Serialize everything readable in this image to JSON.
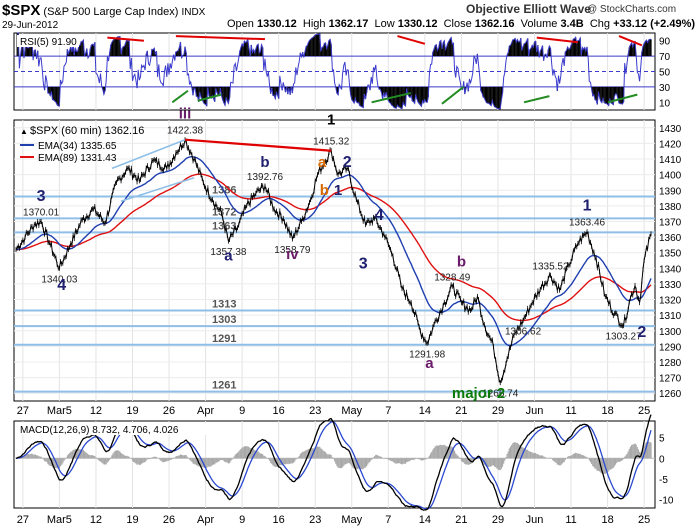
{
  "header": {
    "symbol": "$SPX",
    "name": "(S&P 500 Large Cap Index)",
    "exchange": "INDX",
    "date": "29-Jun-2012",
    "open_label": "Open",
    "open": "1330.12",
    "high_label": "High",
    "high": "1362.17",
    "low_label": "Low",
    "low": "1330.12",
    "close_label": "Close",
    "close": "1362.16",
    "volume_label": "Volume",
    "volume": "3.4B",
    "chg_label": "Chg",
    "chg": "+33.12 (+2.49%)",
    "chg_arrow": "▲",
    "watermark": "Objective Elliott Wave",
    "credit": "@ StockCharts.com"
  },
  "colors": {
    "price": "#000000",
    "ema34": "#1f3fb0",
    "ema89": "#e01010",
    "hline": "#8fbfe6",
    "rsi": "#3b3bcc",
    "macd": "#000000",
    "signal": "#2a48d0",
    "histogram": "#a9a9a9",
    "trend_red": "#e00000",
    "trend_green": "#228b22",
    "label_navy": "#202070",
    "label_purple": "#6a1b6a",
    "label_orange": "#d86a00",
    "label_green": "#0a7a0a"
  },
  "chart_data": [
    {
      "type": "line",
      "panel": "RSI",
      "legend": "RSI(5) 91.90",
      "y_ticks": [
        10,
        30,
        50,
        70,
        90
      ],
      "ylim": [
        0,
        100
      ],
      "reference_lines": [
        30,
        50,
        70
      ],
      "last_value": 91.9
    },
    {
      "type": "line",
      "panel": "price",
      "legend_price": "$SPX (60 min) 1362.16",
      "legend_ema34": "EMA(34) 1335.65",
      "legend_ema89": "EMA(89) 1331.43",
      "ylim": [
        1255,
        1435
      ],
      "y_ticks": [
        1260,
        1270,
        1280,
        1290,
        1300,
        1310,
        1320,
        1330,
        1340,
        1350,
        1360,
        1370,
        1380,
        1390,
        1400,
        1410,
        1420,
        1430
      ],
      "x_ticks": [
        "27",
        "Mar5",
        "12",
        "19",
        "26",
        "Apr",
        "9",
        "16",
        "23",
        "May",
        "7",
        "14",
        "21",
        "29",
        "Jun",
        "11",
        "18",
        "25"
      ],
      "pivots": [
        {
          "t": 0,
          "v": 1352
        },
        {
          "t": 8,
          "v": 1360
        },
        {
          "t": 16,
          "v": 1368
        },
        {
          "t": 22,
          "v": 1370.01
        },
        {
          "t": 30,
          "v": 1355
        },
        {
          "t": 38,
          "v": 1340.03
        },
        {
          "t": 48,
          "v": 1356
        },
        {
          "t": 58,
          "v": 1371
        },
        {
          "t": 68,
          "v": 1378
        },
        {
          "t": 78,
          "v": 1369
        },
        {
          "t": 88,
          "v": 1395
        },
        {
          "t": 98,
          "v": 1404
        },
        {
          "t": 108,
          "v": 1396
        },
        {
          "t": 120,
          "v": 1409
        },
        {
          "t": 132,
          "v": 1404
        },
        {
          "t": 140,
          "v": 1414
        },
        {
          "t": 148,
          "v": 1422.38
        },
        {
          "t": 156,
          "v": 1410
        },
        {
          "t": 164,
          "v": 1395
        },
        {
          "t": 172,
          "v": 1384
        },
        {
          "t": 180,
          "v": 1375
        },
        {
          "t": 186,
          "v": 1357.38
        },
        {
          "t": 194,
          "v": 1366
        },
        {
          "t": 202,
          "v": 1380
        },
        {
          "t": 210,
          "v": 1388
        },
        {
          "t": 218,
          "v": 1392.76
        },
        {
          "t": 226,
          "v": 1378
        },
        {
          "t": 234,
          "v": 1372
        },
        {
          "t": 242,
          "v": 1358.79
        },
        {
          "t": 250,
          "v": 1370
        },
        {
          "t": 258,
          "v": 1384
        },
        {
          "t": 264,
          "v": 1400
        },
        {
          "t": 270,
          "v": 1408
        },
        {
          "t": 276,
          "v": 1415.32
        },
        {
          "t": 282,
          "v": 1400
        },
        {
          "t": 290,
          "v": 1404
        },
        {
          "t": 298,
          "v": 1384
        },
        {
          "t": 306,
          "v": 1368
        },
        {
          "t": 314,
          "v": 1372
        },
        {
          "t": 322,
          "v": 1362
        },
        {
          "t": 330,
          "v": 1348
        },
        {
          "t": 338,
          "v": 1327
        },
        {
          "t": 346,
          "v": 1318
        },
        {
          "t": 354,
          "v": 1300
        },
        {
          "t": 360,
          "v": 1291.98
        },
        {
          "t": 366,
          "v": 1304
        },
        {
          "t": 374,
          "v": 1316
        },
        {
          "t": 382,
          "v": 1328.49
        },
        {
          "t": 390,
          "v": 1318
        },
        {
          "t": 398,
          "v": 1313
        },
        {
          "t": 404,
          "v": 1322
        },
        {
          "t": 410,
          "v": 1304
        },
        {
          "t": 418,
          "v": 1290
        },
        {
          "t": 424,
          "v": 1266.74
        },
        {
          "t": 430,
          "v": 1282
        },
        {
          "t": 436,
          "v": 1297
        },
        {
          "t": 444,
          "v": 1306.62
        },
        {
          "t": 452,
          "v": 1318
        },
        {
          "t": 460,
          "v": 1328
        },
        {
          "t": 468,
          "v": 1335.52
        },
        {
          "t": 476,
          "v": 1326
        },
        {
          "t": 484,
          "v": 1342
        },
        {
          "t": 492,
          "v": 1356
        },
        {
          "t": 500,
          "v": 1363.46
        },
        {
          "t": 508,
          "v": 1346
        },
        {
          "t": 516,
          "v": 1322
        },
        {
          "t": 524,
          "v": 1311
        },
        {
          "t": 532,
          "v": 1303.27
        },
        {
          "t": 538,
          "v": 1321
        },
        {
          "t": 542,
          "v": 1329
        },
        {
          "t": 546,
          "v": 1318
        },
        {
          "t": 550,
          "v": 1345
        },
        {
          "t": 556,
          "v": 1362.16
        }
      ],
      "t_max": 556,
      "support_lines": [
        {
          "value": 1386,
          "label": "1386"
        },
        {
          "value": 1372,
          "label": "1372"
        },
        {
          "value": 1363,
          "label": "1363"
        },
        {
          "value": 1313,
          "label": "1313"
        },
        {
          "value": 1303,
          "label": "1303"
        },
        {
          "value": 1291,
          "label": "1291"
        },
        {
          "value": 1261,
          "label": "1261"
        }
      ],
      "price_annotations": [
        {
          "t": 22,
          "v": 1370.01,
          "text": "1370.01",
          "pos": "above"
        },
        {
          "t": 38,
          "v": 1340.03,
          "text": "1340.03",
          "pos": "below"
        },
        {
          "t": 148,
          "v": 1422.38,
          "text": "1422.38",
          "pos": "above"
        },
        {
          "t": 186,
          "v": 1357.38,
          "text": "1357.38",
          "pos": "below"
        },
        {
          "t": 218,
          "v": 1392.76,
          "text": "1392.76",
          "pos": "above"
        },
        {
          "t": 242,
          "v": 1358.79,
          "text": "1358.79",
          "pos": "below"
        },
        {
          "t": 276,
          "v": 1415.32,
          "text": "1415.32",
          "pos": "above"
        },
        {
          "t": 360,
          "v": 1291.98,
          "text": "1291.98",
          "pos": "below"
        },
        {
          "t": 382,
          "v": 1328.49,
          "text": "1328.49",
          "pos": "above"
        },
        {
          "t": 444,
          "v": 1306.62,
          "text": "1306.62",
          "pos": "below"
        },
        {
          "t": 468,
          "v": 1335.52,
          "text": "1335.52",
          "pos": "above"
        },
        {
          "t": 500,
          "v": 1363.46,
          "text": "1363.46",
          "pos": "above"
        },
        {
          "t": 532,
          "v": 1303.27,
          "text": "1303.27",
          "pos": "below"
        },
        {
          "t": 424,
          "v": 1266.74,
          "text": "1266.74",
          "pos": "below"
        }
      ],
      "wave_labels": [
        {
          "t": 22,
          "v": 1383,
          "text": "3",
          "color": "label_navy",
          "size": 16
        },
        {
          "t": 40,
          "v": 1326,
          "text": "4",
          "color": "label_navy",
          "size": 16
        },
        {
          "t": 148,
          "v": 1436,
          "text": "iii",
          "color": "label_purple",
          "size": 15
        },
        {
          "t": 186,
          "v": 1345,
          "text": "a",
          "color": "label_navy",
          "size": 15
        },
        {
          "t": 218,
          "v": 1405,
          "text": "b",
          "color": "label_navy",
          "size": 15
        },
        {
          "t": 242,
          "v": 1346,
          "text": "iv",
          "color": "label_purple",
          "size": 15
        },
        {
          "t": 276,
          "v": 1432,
          "text": "1",
          "color": "#000000",
          "size": 15
        },
        {
          "t": 268,
          "v": 1405,
          "text": "a",
          "color": "label_orange",
          "size": 15
        },
        {
          "t": 290,
          "v": 1405,
          "text": "2",
          "color": "label_navy",
          "size": 16
        },
        {
          "t": 270,
          "v": 1387,
          "text": "b",
          "color": "label_orange",
          "size": 15
        },
        {
          "t": 282,
          "v": 1387,
          "text": "1",
          "color": "label_navy",
          "size": 15
        },
        {
          "t": 318,
          "v": 1371,
          "text": "4",
          "color": "label_navy",
          "size": 16
        },
        {
          "t": 304,
          "v": 1340,
          "text": "3",
          "color": "label_navy",
          "size": 16
        },
        {
          "t": 362,
          "v": 1276,
          "text": "a",
          "color": "label_purple",
          "size": 15
        },
        {
          "t": 390,
          "v": 1341,
          "text": "b",
          "color": "label_purple",
          "size": 15
        },
        {
          "t": 405,
          "v": 1257,
          "text": "major 2",
          "color": "label_green",
          "size": 15
        },
        {
          "t": 500,
          "v": 1377,
          "text": "1",
          "color": "label_navy",
          "size": 16
        },
        {
          "t": 548,
          "v": 1296,
          "text": "2",
          "color": "label_navy",
          "size": 16
        }
      ]
    },
    {
      "type": "line",
      "panel": "MACD",
      "legend": "MACD(12,26,9) 8.732, 4.706, 4.026",
      "y_ticks": [
        5,
        0,
        -5,
        -10
      ],
      "ylim": [
        -12,
        9
      ],
      "values": {
        "macd": 8.732,
        "signal": 4.706,
        "histogram": 4.026
      }
    }
  ]
}
